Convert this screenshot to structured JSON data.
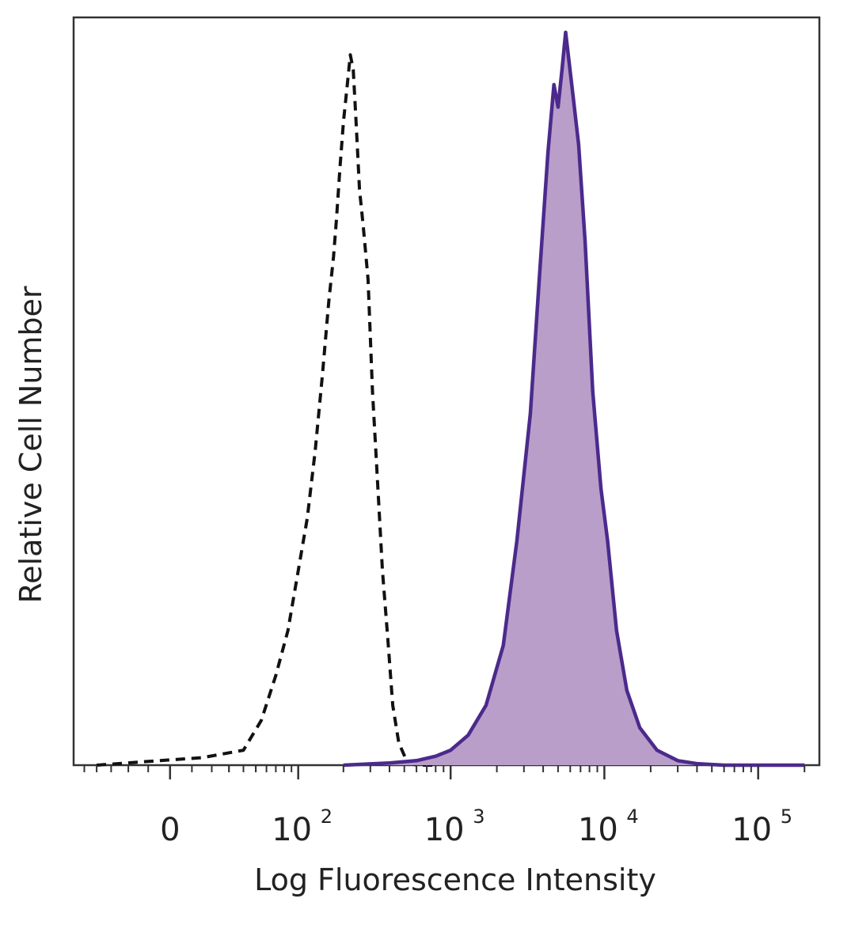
{
  "chart_data": {
    "type": "area",
    "xlabel": "Log Fluorescence Intensity",
    "ylabel": "Relative Cell Number",
    "x_scale": "biexponential",
    "xlim": [
      -60,
      250000
    ],
    "ylim": [
      0,
      1.0
    ],
    "grid": false,
    "x_ticks": [
      {
        "value": 0,
        "base": "0",
        "exp": ""
      },
      {
        "value": 100,
        "base": "10",
        "exp": "2"
      },
      {
        "value": 1000,
        "base": "10",
        "exp": "3"
      },
      {
        "value": 10000,
        "base": "10",
        "exp": "4"
      },
      {
        "value": 100000,
        "base": "10",
        "exp": "5"
      }
    ],
    "series": [
      {
        "style": "dashed",
        "color": "#111111",
        "fill": "none",
        "x": [
          -40,
          -10,
          15,
          40,
          55,
          70,
          85,
          100,
          115,
          130,
          145,
          160,
          172,
          180,
          190,
          200,
          212,
          222,
          232,
          242,
          255,
          270,
          290,
          310,
          330,
          360,
          390,
          420,
          460,
          520,
          600,
          800
        ],
        "y": [
          0.0,
          0.005,
          0.01,
          0.02,
          0.06,
          0.12,
          0.18,
          0.26,
          0.33,
          0.42,
          0.52,
          0.62,
          0.68,
          0.73,
          0.8,
          0.86,
          0.91,
          0.95,
          0.93,
          0.86,
          0.77,
          0.72,
          0.65,
          0.5,
          0.4,
          0.26,
          0.17,
          0.08,
          0.03,
          0.005,
          0.0,
          0.0
        ]
      },
      {
        "style": "solid",
        "color": "#4b2a8c",
        "fill": "#b89ec9",
        "x": [
          200,
          400,
          600,
          800,
          1000,
          1300,
          1700,
          2200,
          2700,
          3300,
          3800,
          4300,
          4700,
          5000,
          5300,
          5600,
          5900,
          6300,
          6800,
          7500,
          8400,
          9500,
          10500,
          12000,
          14000,
          17000,
          22000,
          30000,
          40000,
          60000,
          100000,
          200000
        ],
        "y": [
          0.0,
          0.003,
          0.006,
          0.012,
          0.02,
          0.04,
          0.08,
          0.16,
          0.3,
          0.47,
          0.66,
          0.82,
          0.91,
          0.88,
          0.93,
          0.98,
          0.94,
          0.89,
          0.83,
          0.7,
          0.5,
          0.37,
          0.3,
          0.18,
          0.1,
          0.05,
          0.02,
          0.006,
          0.002,
          0.0,
          0.0,
          0.0
        ]
      }
    ]
  }
}
